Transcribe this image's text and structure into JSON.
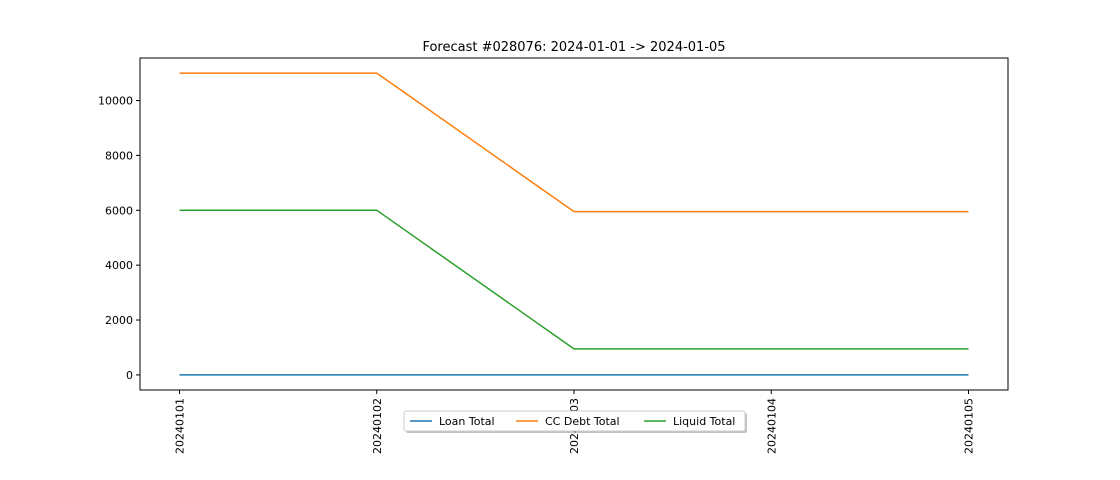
{
  "chart_data": {
    "type": "line",
    "title": "Forecast #028076: 2024-01-01 -> 2024-01-05",
    "xlabel": "",
    "ylabel": "",
    "categories": [
      "20240101",
      "20240102",
      "20240103",
      "20240104",
      "20240105"
    ],
    "ylim": [
      -550,
      11550
    ],
    "yticks": [
      0,
      2000,
      4000,
      6000,
      8000,
      10000
    ],
    "grid": false,
    "legend_position": "bottom-center",
    "series": [
      {
        "name": "Loan Total",
        "color": "#1f77b4",
        "values": [
          0,
          0,
          0,
          0,
          0
        ]
      },
      {
        "name": "CC Debt Total",
        "color": "#ff7f0e",
        "values": [
          11000,
          11000,
          5950,
          5950,
          5950
        ]
      },
      {
        "name": "Liquid Total",
        "color": "#2ca02c",
        "values": [
          6000,
          6000,
          950,
          950,
          950
        ]
      }
    ]
  }
}
